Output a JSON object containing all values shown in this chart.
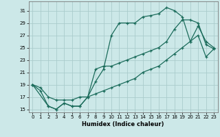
{
  "xlabel": "Humidex (Indice chaleur)",
  "background_color": "#cce8e8",
  "grid_color": "#aacccc",
  "line_color": "#1a6b5a",
  "xlim": [
    -0.5,
    23.5
  ],
  "ylim": [
    14.5,
    32.5
  ],
  "yticks": [
    15,
    17,
    19,
    21,
    23,
    25,
    27,
    29,
    31
  ],
  "xticks": [
    0,
    1,
    2,
    3,
    4,
    5,
    6,
    7,
    8,
    9,
    10,
    11,
    12,
    13,
    14,
    15,
    16,
    17,
    18,
    19,
    20,
    21,
    22,
    23
  ],
  "line1_x": [
    0,
    1,
    2,
    3,
    4,
    5,
    6,
    7,
    8,
    9,
    10,
    11,
    12,
    13,
    14,
    15,
    16,
    17,
    18,
    19,
    20,
    21,
    22,
    23
  ],
  "line1_y": [
    19,
    18,
    15.5,
    15,
    16,
    15.5,
    15.5,
    17,
    19.5,
    21.5,
    27,
    29,
    29,
    29,
    30,
    30.2,
    30.5,
    31.5,
    31,
    30,
    26,
    28.5,
    26,
    25
  ],
  "line2_x": [
    0,
    2,
    3,
    4,
    5,
    6,
    7,
    8,
    9,
    10,
    11,
    12,
    13,
    14,
    15,
    16,
    17,
    18,
    19,
    20,
    21,
    22,
    23
  ],
  "line2_y": [
    19,
    15.5,
    15,
    16,
    15.5,
    15.5,
    17,
    21.5,
    22,
    22,
    22.5,
    23,
    23.5,
    24,
    24.5,
    25,
    26,
    28,
    29.5,
    29.5,
    29,
    25.5,
    24.8
  ],
  "line3_x": [
    0,
    1,
    2,
    3,
    4,
    5,
    6,
    7,
    8,
    9,
    10,
    11,
    12,
    13,
    14,
    15,
    16,
    17,
    18,
    19,
    20,
    21,
    22,
    23
  ],
  "line3_y": [
    19,
    18.5,
    17,
    16.5,
    16.5,
    16.5,
    17,
    17,
    17.5,
    18,
    18.5,
    19,
    19.5,
    20,
    21,
    21.5,
    22,
    23,
    24,
    25,
    26,
    27,
    23.5,
    24.8
  ]
}
